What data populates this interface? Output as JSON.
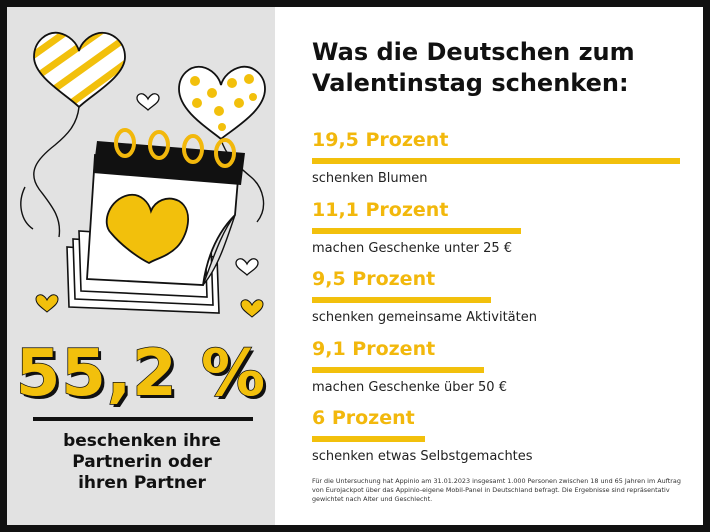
{
  "colors": {
    "accent": "#f2c00c",
    "ink": "#111111",
    "panel": "#e2e2e2"
  },
  "left_panel": {
    "big_number": "55,2 %",
    "caption_lines": [
      "beschenken ihre",
      "Partnerin oder",
      "ihren Partner"
    ],
    "icons": [
      "striped-heart-balloon-icon",
      "polka-dot-heart-balloon-icon",
      "calendar-heart-icon",
      "small-heart-icon"
    ]
  },
  "title_lines": [
    "Was die Deutschen zum",
    "Valentinstag schenken:"
  ],
  "chart_data": {
    "type": "bar",
    "orientation": "horizontal",
    "unit": "Prozent",
    "categories": [
      "schenken Blumen",
      "machen Geschenke unter 25 €",
      "schenken gemeinsame Aktivitäten",
      "machen Geschenke über 50 €",
      "schenken etwas Selbstgemachtes"
    ],
    "values": [
      19.5,
      11.1,
      9.5,
      9.1,
      6
    ],
    "value_labels": [
      "19,5 Prozent",
      "11,1 Prozent",
      "9,5 Prozent",
      "9,1 Prozent",
      "6 Prozent"
    ],
    "xlim": [
      0,
      19.5
    ]
  },
  "footnote": "Für die Untersuchung hat Appinio am 31.01.2023 insgesamt 1.000 Personen zwischen 18 und 65 Jahren im Auftrag von Eurojackpot über das Appinio-eigene Mobil-Panel in Deutschland befragt. Die Ergebnisse sind repräsentativ gewichtet nach Alter und Geschlecht."
}
